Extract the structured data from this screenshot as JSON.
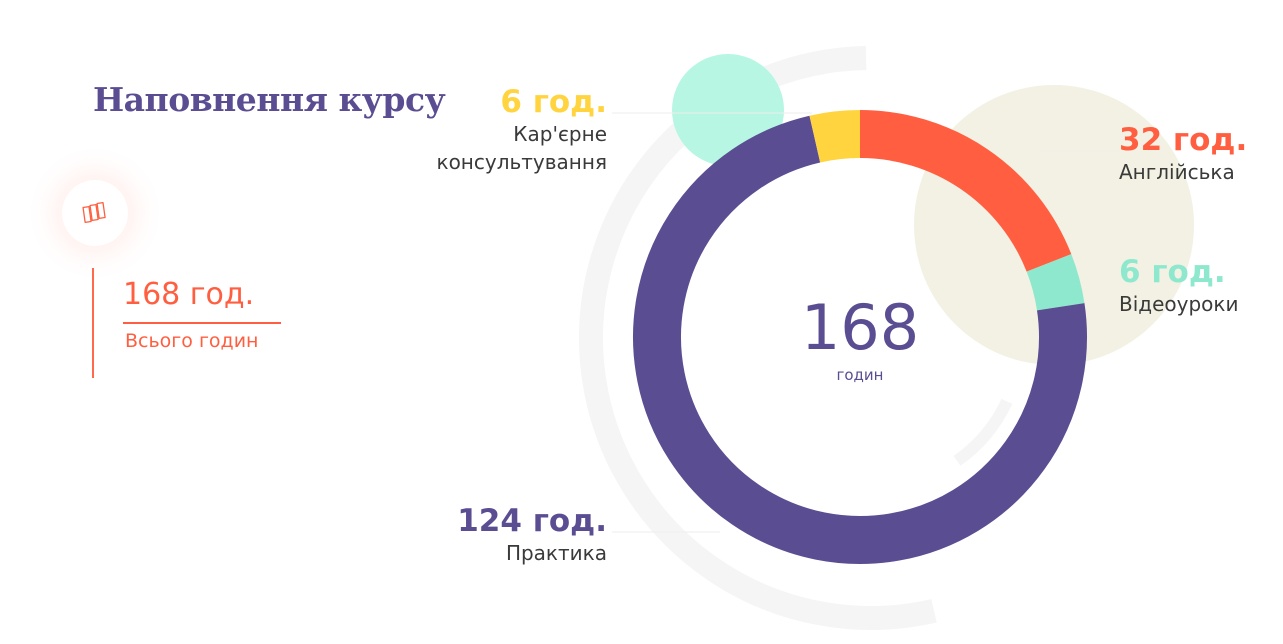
{
  "header": {
    "title": "Наповнення курсу"
  },
  "summary": {
    "total_value": "168 год.",
    "total_label": "Всього годин",
    "icon": "books-icon"
  },
  "colors": {
    "purple": "#5b4d92",
    "orange": "#ff5f40",
    "yellow": "#ffd43f",
    "mint": "#8ee8cd",
    "mint_light": "#b7f6e3",
    "beige": "#f3f1e3",
    "grey_ring": "#f5f5f5"
  },
  "chart_data": {
    "type": "pie",
    "title": "",
    "center_value": "168",
    "center_unit": "годин",
    "total": 168,
    "slices": [
      {
        "label": "Англійська",
        "value": 32,
        "value_label": "32 год.",
        "color": "#ff5f40"
      },
      {
        "label": "Відеоуроки",
        "value": 6,
        "value_label": "6 год.",
        "color": "#8ee8cd"
      },
      {
        "label": "Практика",
        "value": 124,
        "value_label": "124 год.",
        "color": "#5b4d92"
      },
      {
        "label": "Кар'єрне консультування",
        "value": 6,
        "value_label": "6 год.",
        "color": "#ffd43f"
      }
    ]
  }
}
